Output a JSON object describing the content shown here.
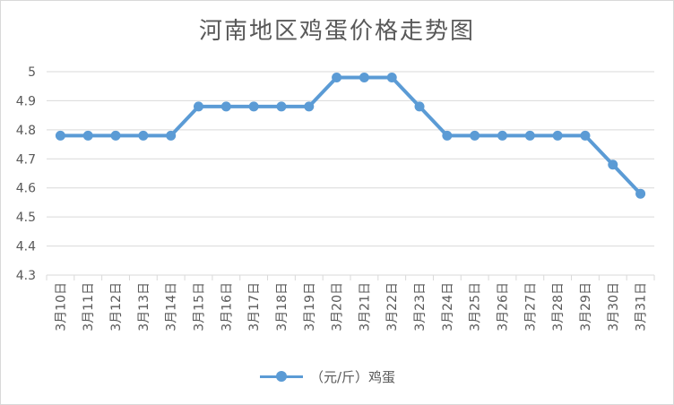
{
  "chart_data": {
    "type": "line",
    "title": "河南地区鸡蛋价格走势图",
    "xlabel": "",
    "ylabel": "",
    "categories": [
      "3月10日",
      "3月11日",
      "3月12日",
      "3月13日",
      "3月14日",
      "3月15日",
      "3月16日",
      "3月17日",
      "3月18日",
      "3月19日",
      "3月20日",
      "3月21日",
      "3月22日",
      "3月23日",
      "3月24日",
      "3月25日",
      "3月26日",
      "3月27日",
      "3月28日",
      "3月29日",
      "3月30日",
      "3月31日"
    ],
    "series": [
      {
        "name": "（元/斤）鸡蛋",
        "values": [
          4.78,
          4.78,
          4.78,
          4.78,
          4.78,
          4.88,
          4.88,
          4.88,
          4.88,
          4.88,
          4.98,
          4.98,
          4.98,
          4.88,
          4.78,
          4.78,
          4.78,
          4.78,
          4.78,
          4.78,
          4.68,
          4.58
        ]
      }
    ],
    "ylim": [
      4.3,
      5
    ],
    "yticks": [
      "4.3",
      "4.4",
      "4.5",
      "4.6",
      "4.7",
      "4.8",
      "4.9",
      "5"
    ],
    "grid": true,
    "legend_position": "bottom",
    "color": "#5b9bd5"
  }
}
